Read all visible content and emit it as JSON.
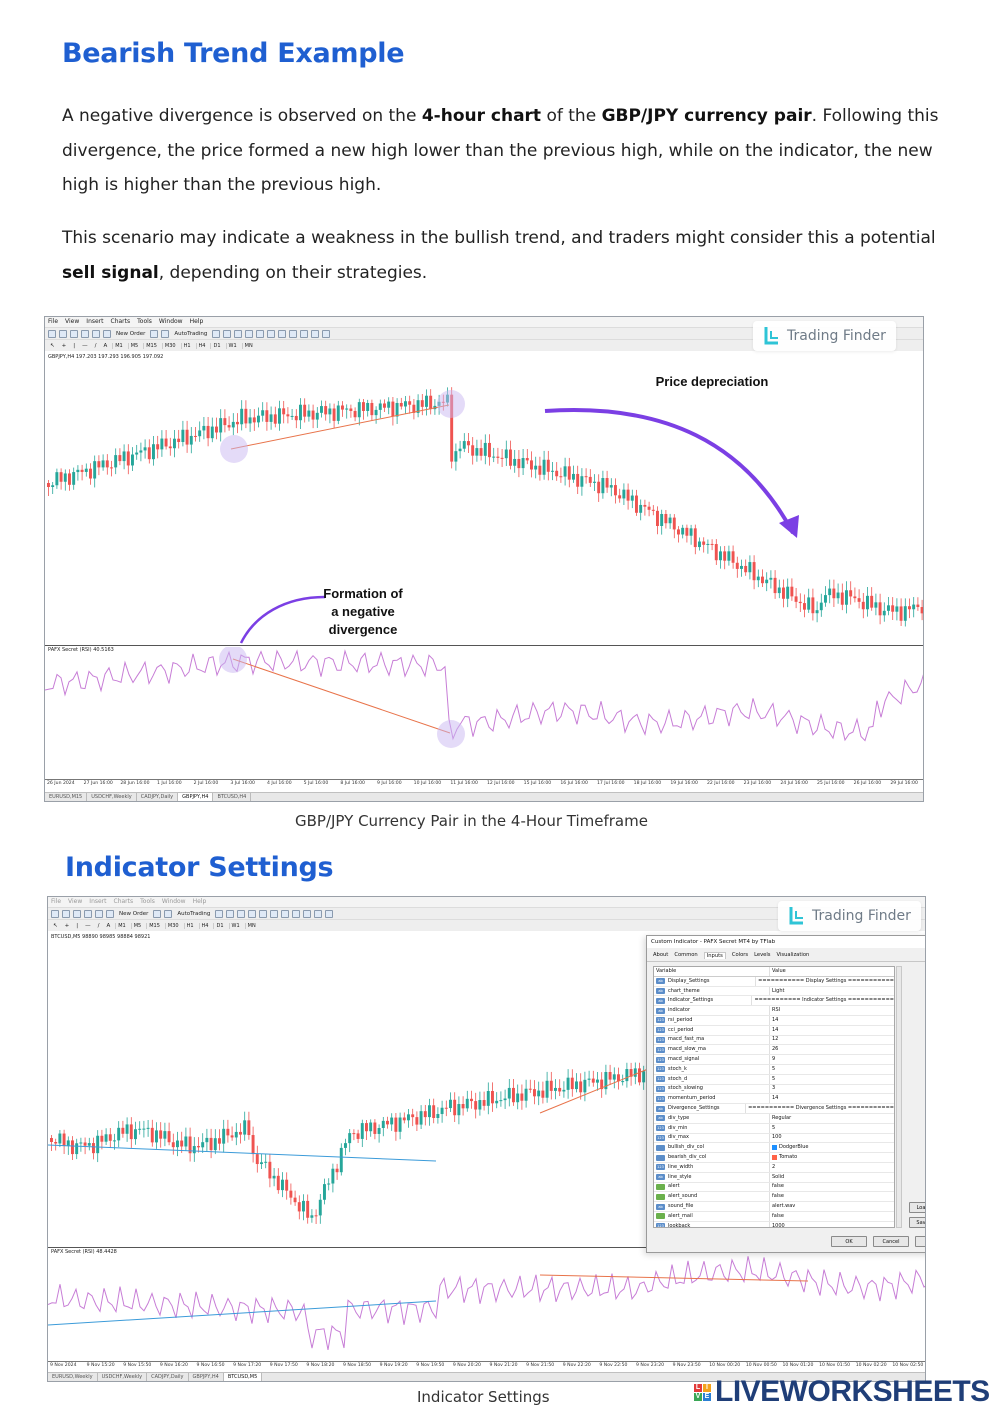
{
  "section1": {
    "title": "Bearish Trend Example",
    "p1": [
      "A negative divergence is observed on the ",
      "4-hour chart",
      " of the ",
      "GBP/JPY currency pair",
      ". Following this divergence, the price formed a new high lower than the previous high, while on the indicator, the new high is higher than the previous high."
    ],
    "p2": [
      "This scenario may indicate a weakness in the bullish trend, and traders might consider this a potential ",
      "sell signal",
      ", depending on their strategies."
    ],
    "caption": "GBP/JPY Currency Pair in the 4-Hour Timeframe"
  },
  "section2": {
    "title": "Indicator Settings",
    "caption": "Indicator Settings"
  },
  "mt4": {
    "menu": [
      "File",
      "View",
      "Insert",
      "Charts",
      "Tools",
      "Window",
      "Help"
    ],
    "new_order": "New Order",
    "autotrading": "AutoTrading",
    "timeframes": [
      "M1",
      "M5",
      "M15",
      "M30",
      "H1",
      "H4",
      "D1",
      "W1",
      "MN"
    ]
  },
  "logo": {
    "text": "Trading Finder"
  },
  "chart1": {
    "symbol_label": "GBPJPY,H4  197.203 197.293 196.905 197.092",
    "indicator_label": "PAFX Secret (RSI) 40.5163",
    "annotation_price": "Price depreciation",
    "annotation_div": [
      "Formation of",
      "a negative",
      "divergence"
    ],
    "time_labels": [
      "26 Jun 2024",
      "27 Jun 16:00",
      "28 Jun 16:00",
      "1 Jul 16:00",
      "2 Jul 16:00",
      "3 Jul 16:00",
      "4 Jul 16:00",
      "5 Jul 16:00",
      "8 Jul 16:00",
      "9 Jul 16:00",
      "10 Jul 16:00",
      "11 Jul 16:00",
      "12 Jul 16:00",
      "15 Jul 16:00",
      "16 Jul 16:00",
      "17 Jul 16:00",
      "18 Jul 16:00",
      "19 Jul 16:00",
      "22 Jul 16:00",
      "23 Jul 16:00",
      "24 Jul 16:00",
      "25 Jul 16:00",
      "26 Jul 16:00",
      "29 Jul 16:00"
    ],
    "tabs": [
      "EURUSD,M15",
      "USDCHF,Weekly",
      "CADJPY,Daily",
      "GBPJPY,H4",
      "BTCUSD,H4"
    ],
    "active_tab": "GBPJPY,H4",
    "colors": {
      "bull": "#26a69a",
      "bear": "#ef5350",
      "divline": "#e8734a",
      "rsi": "#c77dd6",
      "arrow": "#7b3fe4",
      "highlight": "#c9b8f2"
    }
  },
  "chart2": {
    "symbol_label": "BTCUSD,M5  98890 98985 98884 98921",
    "indicator_label": "PAFX Secret (RSI) 48.4428",
    "time_labels": [
      "9 Nov 2024",
      "9 Nov 15:20",
      "9 Nov 15:50",
      "9 Nov 16:20",
      "9 Nov 16:50",
      "9 Nov 17:20",
      "9 Nov 17:50",
      "9 Nov 18:20",
      "9 Nov 18:50",
      "9 Nov 19:20",
      "9 Nov 19:50",
      "9 Nov 20:20",
      "9 Nov 21:20",
      "9 Nov 21:50",
      "9 Nov 22:20",
      "9 Nov 22:50",
      "9 Nov 23:20",
      "9 Nov 23:50",
      "10 Nov 00:20",
      "10 Nov 00:50",
      "10 Nov 01:20",
      "10 Nov 01:50",
      "10 Nov 02:20",
      "10 Nov 02:50"
    ],
    "tabs": [
      "EURUSD,Weekly",
      "USDCHF,Weekly",
      "CADJPY,Daily",
      "GBPJPY,H4",
      "BTCUSD,M5"
    ],
    "active_tab": "BTCUSD,M5",
    "colors": {
      "bull": "#26a69a",
      "bear": "#ef5350",
      "bullish_line": "#3b9bd9",
      "bearish_line": "#e8734a",
      "rsi": "#c77dd6"
    }
  },
  "dialog": {
    "title": "Custom Indicator - PAFX Secret MT4 by TFlab",
    "tabs": [
      "About",
      "Common",
      "Inputs",
      "Colors",
      "Levels",
      "Visualization"
    ],
    "active_tab": "Inputs",
    "col_variable": "Variable",
    "col_value": "Value",
    "rows": [
      {
        "icon": "ab",
        "variable": "Display_Settings",
        "value": "=========== Display Settings ==========="
      },
      {
        "icon": "ab",
        "variable": "chart_theme",
        "value": "Light"
      },
      {
        "icon": "ab",
        "variable": "Indicator_Settings",
        "value": "=========== Indicator Settings ==========="
      },
      {
        "icon": "ab",
        "variable": "indicator",
        "value": "RSI"
      },
      {
        "icon": "123",
        "variable": "rsi_period",
        "value": "14"
      },
      {
        "icon": "123",
        "variable": "cci_period",
        "value": "14"
      },
      {
        "icon": "123",
        "variable": "macd_fast_ma",
        "value": "12"
      },
      {
        "icon": "123",
        "variable": "macd_slow_ma",
        "value": "26"
      },
      {
        "icon": "123",
        "variable": "macd_signal",
        "value": "9"
      },
      {
        "icon": "123",
        "variable": "stoch_k",
        "value": "5"
      },
      {
        "icon": "123",
        "variable": "stoch_d",
        "value": "5"
      },
      {
        "icon": "123",
        "variable": "stoch_slowing",
        "value": "3"
      },
      {
        "icon": "123",
        "variable": "momentum_period",
        "value": "14"
      },
      {
        "icon": "ab",
        "variable": "Divergence_Settings",
        "value": "=========== Divergence Settings ==========="
      },
      {
        "icon": "ab",
        "variable": "div_type",
        "value": "Regular"
      },
      {
        "icon": "123",
        "variable": "div_min",
        "value": "5"
      },
      {
        "icon": "123",
        "variable": "div_max",
        "value": "100"
      },
      {
        "icon": "col",
        "variable": "bullish_div_col",
        "value": "DodgerBlue",
        "swatch": "#1e90ff"
      },
      {
        "icon": "col",
        "variable": "bearish_div_col",
        "value": "Tomato",
        "swatch": "#ff6347"
      },
      {
        "icon": "123",
        "variable": "line_width",
        "value": "2"
      },
      {
        "icon": "ab",
        "variable": "line_style",
        "value": "Solid"
      },
      {
        "icon": "bool",
        "variable": "alert",
        "value": "false"
      },
      {
        "icon": "bool",
        "variable": "alert_sound",
        "value": "false"
      },
      {
        "icon": "ab",
        "variable": "sound_file",
        "value": "alert.wav"
      },
      {
        "icon": "bool",
        "variable": "alert_mail",
        "value": "false"
      },
      {
        "icon": "123",
        "variable": "lookback",
        "value": "1000"
      }
    ],
    "ok": "OK",
    "cancel": "Cancel",
    "load": "Loa",
    "save": "Sav"
  },
  "footer_logo": {
    "text": "LIVEWORKSHEETS",
    "letters": [
      "L",
      "I",
      "V",
      "E"
    ],
    "colors": [
      "#e23b3b",
      "#f4a21c",
      "#3aa655",
      "#2a7fd4"
    ]
  }
}
